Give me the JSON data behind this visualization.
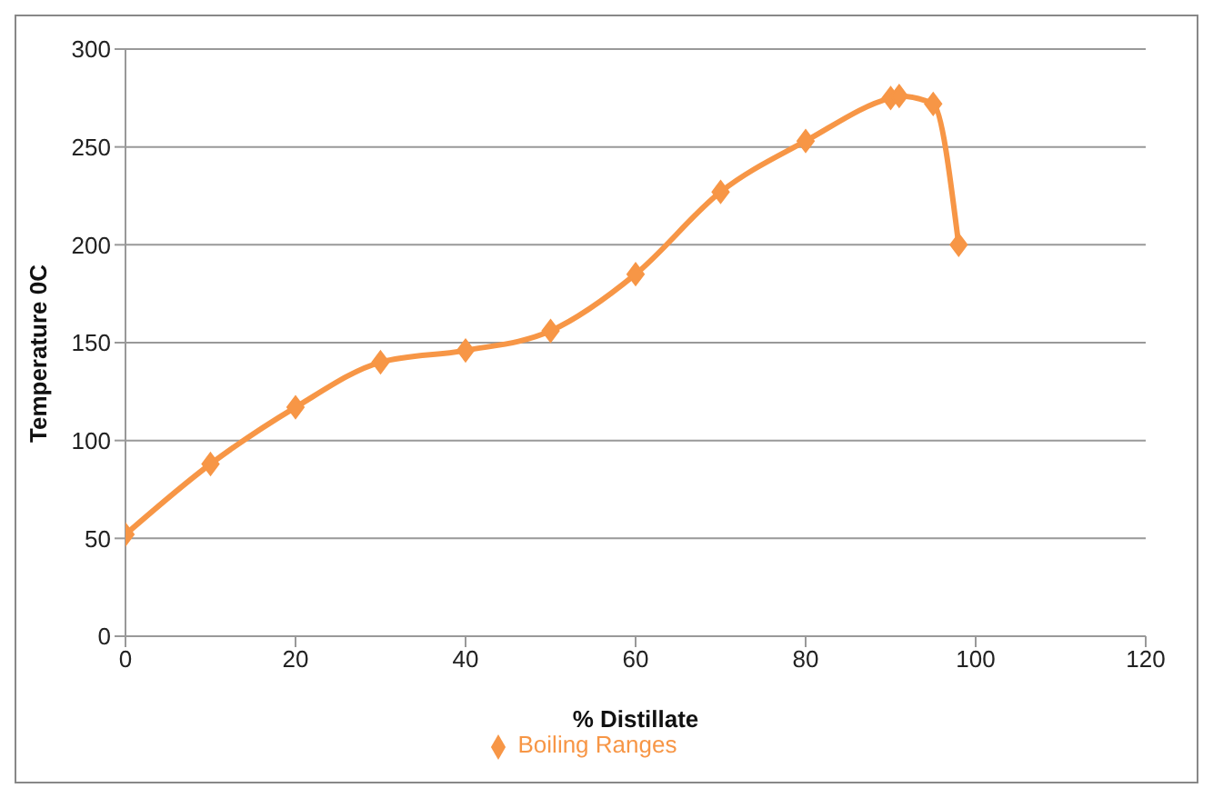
{
  "chart_data": {
    "type": "line",
    "xlabel": "% Distillate",
    "ylabel": "Temperature 0C",
    "x": [
      0,
      10,
      20,
      30,
      40,
      50,
      60,
      70,
      80,
      90,
      91,
      95,
      98
    ],
    "series": [
      {
        "name": "Boiling Ranges",
        "color": "#f79646",
        "values": [
          52,
          88,
          117,
          140,
          146,
          156,
          185,
          227,
          253,
          275,
          276,
          272,
          200
        ]
      }
    ],
    "xlim": [
      0,
      120
    ],
    "xticks": [
      0,
      20,
      40,
      60,
      80,
      100,
      120
    ],
    "ylim": [
      0,
      300
    ],
    "yticks": [
      0,
      50,
      100,
      150,
      200,
      250,
      300
    ],
    "grid": "y",
    "legend": "bottom",
    "marker": "diamond",
    "line_style": "solid"
  }
}
